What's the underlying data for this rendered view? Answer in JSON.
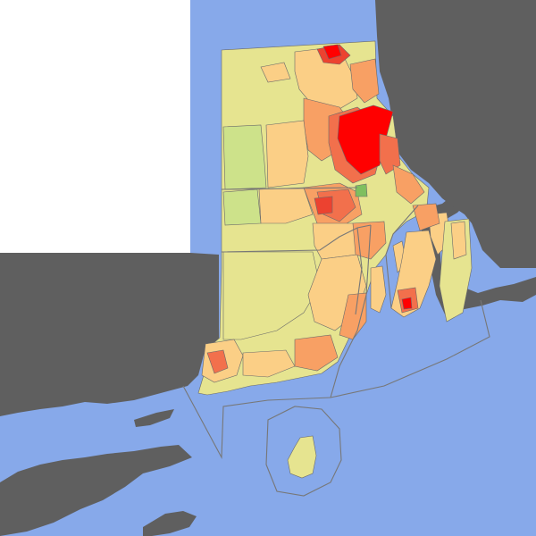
{
  "map": {
    "type": "choropleth",
    "colors": {
      "ocean": "#87a9ea",
      "land_outside": "#5f5f5f",
      "blank_panel": "#ffffff",
      "boundary": "#6a6a6a",
      "class_1": "#7fbf5f",
      "class_2": "#cde28a",
      "class_3": "#e6e490",
      "class_4": "#fbcf86",
      "class_5": "#f8a064",
      "class_6": "#f2704c",
      "class_7": "#ec4230",
      "class_8": "#ff0000"
    }
  }
}
